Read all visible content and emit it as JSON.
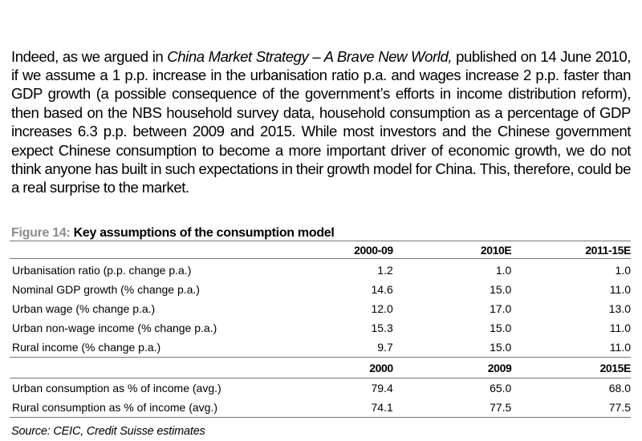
{
  "paragraph": {
    "intro": "Indeed, as we argued in ",
    "title_ref": "China Market Strategy – A Brave New World,",
    "body": " published on 14 June 2010, if we assume a 1 p.p. increase in the urbanisation ratio p.a. and wages increase 2 p.p. faster than GDP growth (a possible consequence of the government’s efforts in income distribution reform), then based on the NBS household survey data, household consumption as a percentage of GDP increases 6.3 p.p. between 2009 and 2015. While most investors and the Chinese government expect Chinese consumption to become a more important driver of economic growth, we do not think anyone has built in such expectations in their growth model for China. This, therefore, could be a real surprise to the market."
  },
  "figure": {
    "number": "Figure 14:",
    "title": " Key assumptions of the consumption model",
    "header1": [
      "2000-09",
      "2010E",
      "2011-15E"
    ],
    "rows1": [
      {
        "label": "Urbanisation ratio (p.p. change p.a.)",
        "values": [
          "1.2",
          "1.0",
          "1.0"
        ]
      },
      {
        "label": "Nominal GDP growth (% change p.a.)",
        "values": [
          "14.6",
          "15.0",
          "11.0"
        ]
      },
      {
        "label": "Urban wage (% change p.a.)",
        "values": [
          "12.0",
          "17.0",
          "13.0"
        ]
      },
      {
        "label": "Urban non-wage income (% change p.a.)",
        "values": [
          "15.3",
          "15.0",
          "11.0"
        ]
      },
      {
        "label": "Rural income (% change p.a.)",
        "values": [
          "9.7",
          "15.0",
          "11.0"
        ]
      }
    ],
    "header2": [
      "2000",
      "2009",
      "2015E"
    ],
    "rows2": [
      {
        "label": "Urban consumption as % of income (avg.)",
        "values": [
          "79.4",
          "65.0",
          "68.0"
        ]
      },
      {
        "label": "Rural consumption as % of income (avg.)",
        "values": [
          "74.1",
          "77.5",
          "77.5"
        ]
      }
    ],
    "source": "Source: CEIC, Credit Suisse estimates"
  }
}
